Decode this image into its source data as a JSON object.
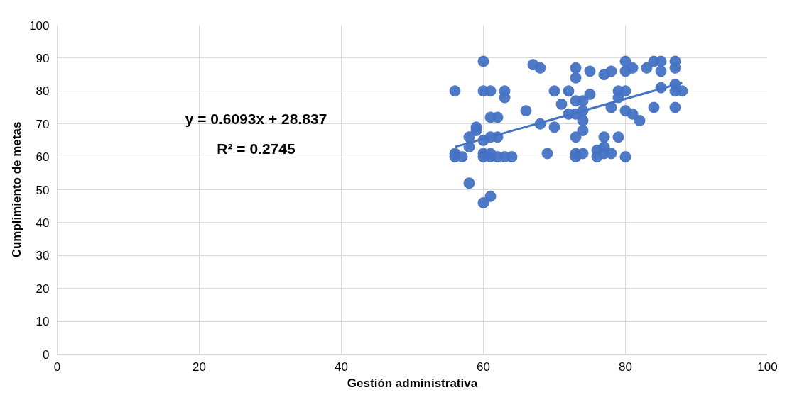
{
  "chart_data": {
    "type": "scatter",
    "xlabel": "Gestión administrativa",
    "ylabel": "Cumplimiento de metas",
    "xlim": [
      0,
      100
    ],
    "ylim": [
      0,
      100
    ],
    "xticks": [
      0,
      20,
      40,
      60,
      80,
      100
    ],
    "yticks": [
      0,
      10,
      20,
      30,
      40,
      50,
      60,
      70,
      80,
      90,
      100
    ],
    "grid": true,
    "annotations": [
      "y = 0.6093x + 28.837",
      "R² = 0.2745"
    ],
    "series": [
      {
        "marker": "circle",
        "color": "#4472c4",
        "x": [
          56,
          60,
          60,
          61,
          63,
          63,
          67,
          68,
          70,
          72,
          73,
          73,
          75,
          77,
          78,
          80,
          80,
          81,
          83,
          84,
          85,
          85,
          87,
          87,
          87,
          87,
          88,
          85,
          84,
          87,
          79,
          79,
          80,
          75,
          71,
          72,
          73,
          74,
          74,
          74,
          78,
          80,
          81,
          82,
          66,
          61,
          62,
          59,
          59,
          70,
          68,
          58,
          61,
          62,
          60,
          58,
          56,
          56,
          57,
          60,
          60,
          61,
          61,
          62,
          63,
          64,
          69,
          58,
          61,
          60,
          73,
          73,
          73,
          74,
          76,
          76,
          77,
          77,
          77,
          78,
          79,
          80,
          73,
          74
        ],
        "values": [
          80,
          89,
          80,
          80,
          80,
          78,
          88,
          87,
          80,
          80,
          87,
          84,
          86,
          85,
          86,
          89,
          86,
          87,
          87,
          89,
          89,
          86,
          89,
          87,
          82,
          80,
          80,
          81,
          75,
          75,
          80,
          78,
          80,
          79,
          76,
          73,
          73,
          74,
          71,
          68,
          75,
          74,
          73,
          71,
          74,
          72,
          72,
          69,
          68,
          69,
          70,
          66,
          66,
          66,
          65,
          63,
          61,
          60,
          60,
          61,
          60,
          61,
          60,
          60,
          60,
          60,
          61,
          52,
          48,
          46,
          66,
          61,
          60,
          61,
          60,
          62,
          63,
          66,
          61,
          61,
          66,
          60,
          77,
          77
        ]
      },
      {
        "type": "line",
        "color": "#4472c4",
        "x": [
          56,
          88
        ],
        "values": [
          63.0,
          82.5
        ],
        "line_style": "solid"
      }
    ]
  }
}
